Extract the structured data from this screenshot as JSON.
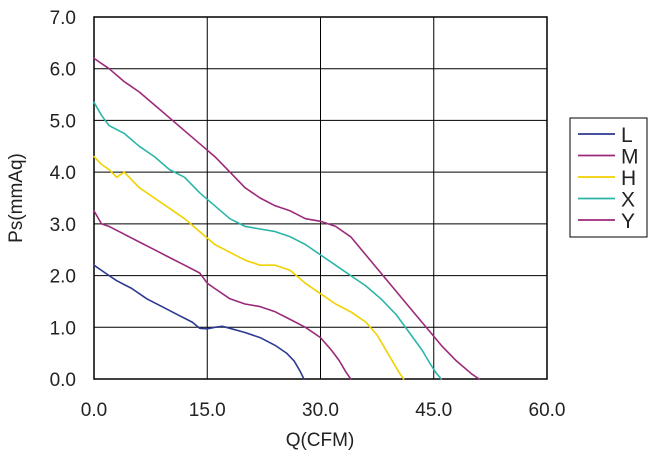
{
  "chart_data": {
    "type": "line",
    "title": "",
    "xlabel": "Q(CFM)",
    "ylabel": "Ps(mmAq)",
    "xlim": [
      0,
      60
    ],
    "ylim": [
      0,
      7
    ],
    "xticks": [
      "0.0",
      "15.0",
      "30.0",
      "45.0",
      "60.0"
    ],
    "yticks": [
      "0.0",
      "1.0",
      "2.0",
      "3.0",
      "4.0",
      "5.0",
      "6.0",
      "7.0"
    ],
    "grid": true,
    "legend_position": "right",
    "series": [
      {
        "name": "L",
        "color": "#2b3990",
        "x": [
          0,
          1,
          2,
          3,
          5,
          7,
          9,
          11,
          13,
          14,
          15,
          16,
          17,
          18,
          20,
          22,
          24,
          25.5,
          26.5,
          27.3,
          27.8
        ],
        "y": [
          2.2,
          2.1,
          2.0,
          1.9,
          1.75,
          1.55,
          1.4,
          1.25,
          1.1,
          0.98,
          0.97,
          1.0,
          1.02,
          0.98,
          0.9,
          0.8,
          0.65,
          0.5,
          0.35,
          0.15,
          0.0
        ]
      },
      {
        "name": "M",
        "color": "#9b2a7a",
        "x": [
          0,
          1,
          2,
          4,
          6,
          8,
          10,
          12,
          14,
          15,
          16,
          18,
          20,
          22,
          24,
          26,
          28,
          30,
          31.5,
          32.5,
          33.3,
          34.0
        ],
        "y": [
          3.25,
          3.0,
          2.95,
          2.8,
          2.65,
          2.5,
          2.35,
          2.2,
          2.05,
          1.85,
          1.75,
          1.55,
          1.45,
          1.4,
          1.3,
          1.15,
          1.0,
          0.8,
          0.55,
          0.35,
          0.15,
          0.0
        ]
      },
      {
        "name": "H",
        "color": "#f2d100",
        "x": [
          0,
          1,
          2,
          3,
          4,
          5,
          6,
          8,
          10,
          12,
          14,
          16,
          18,
          20,
          22,
          24,
          26,
          28,
          30,
          32,
          34,
          36,
          37.5,
          38.5,
          39.5,
          40.3,
          41.0
        ],
        "y": [
          4.3,
          4.15,
          4.05,
          3.9,
          4.0,
          3.85,
          3.7,
          3.5,
          3.3,
          3.1,
          2.85,
          2.6,
          2.45,
          2.3,
          2.2,
          2.2,
          2.1,
          1.85,
          1.65,
          1.45,
          1.3,
          1.1,
          0.85,
          0.6,
          0.35,
          0.15,
          0.0
        ]
      },
      {
        "name": "X",
        "color": "#2bb5a8",
        "x": [
          0,
          1,
          2,
          4,
          6,
          8,
          10,
          12,
          14,
          16,
          18,
          20,
          22,
          24,
          26,
          28,
          30,
          32,
          34,
          36,
          38,
          40,
          42,
          43.5,
          44.5,
          45.3,
          46.0
        ],
        "y": [
          5.35,
          5.1,
          4.9,
          4.75,
          4.5,
          4.3,
          4.05,
          3.9,
          3.6,
          3.35,
          3.1,
          2.95,
          2.9,
          2.85,
          2.75,
          2.6,
          2.4,
          2.2,
          2.0,
          1.8,
          1.55,
          1.25,
          0.85,
          0.55,
          0.3,
          0.12,
          0.0
        ]
      },
      {
        "name": "Y",
        "color": "#9b2a7a",
        "x": [
          0,
          2,
          4,
          6,
          8,
          10,
          12,
          14,
          16,
          18,
          20,
          22,
          24,
          26,
          28,
          30,
          32,
          34,
          36,
          38,
          40,
          42,
          44,
          46,
          48,
          50,
          51.0
        ],
        "y": [
          6.2,
          6.0,
          5.75,
          5.55,
          5.3,
          5.05,
          4.8,
          4.55,
          4.3,
          4.0,
          3.7,
          3.5,
          3.35,
          3.25,
          3.1,
          3.05,
          2.95,
          2.75,
          2.4,
          2.05,
          1.7,
          1.35,
          1.0,
          0.65,
          0.35,
          0.1,
          0.0
        ]
      }
    ]
  }
}
